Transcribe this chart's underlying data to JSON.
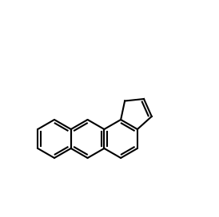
{
  "figsize": [
    2.74,
    2.72
  ],
  "dpi": 100,
  "bg_color": "#ffffff",
  "line_color": "#000000",
  "line_width": 1.5,
  "font_size": 8
}
